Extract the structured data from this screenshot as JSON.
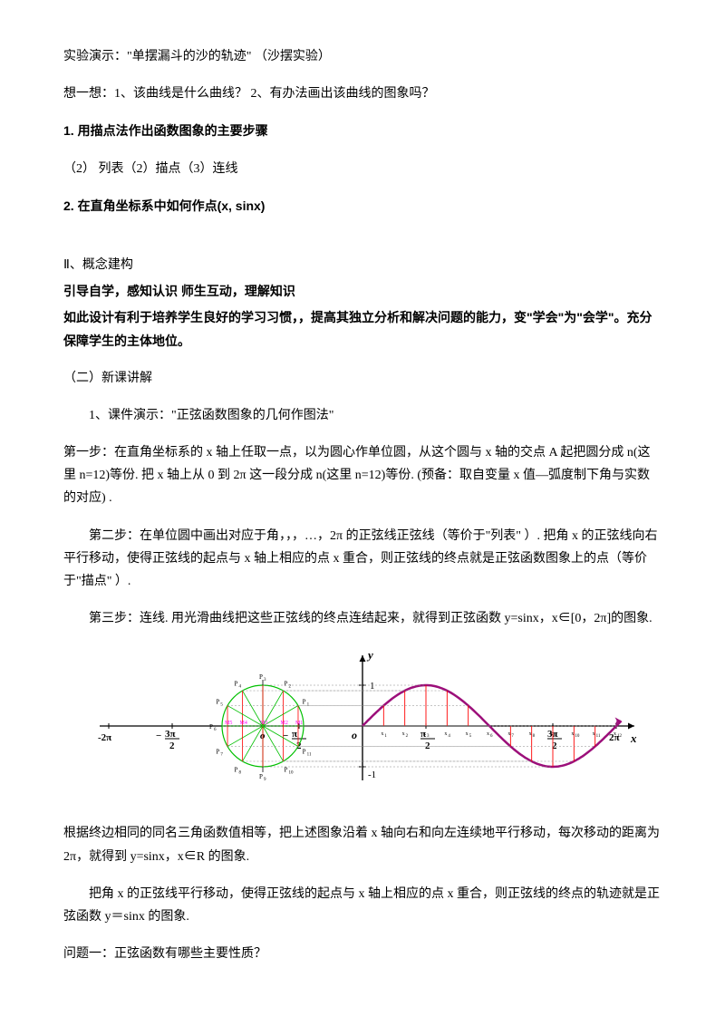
{
  "p1": "实验演示：\"单摆漏斗的沙的轨迹\"   （沙摆实验）",
  "p2": "想一想：1、该曲线是什么曲线？  2、有办法画出该曲线的图象吗？",
  "h1": "1. 用描点法作出函数图象的主要步骤",
  "p3": "（2）  列表（2）描点（3）连线",
  "h2": "2. 在直角坐标系中如何作点(x, sinx)",
  "s2a": "Ⅱ、概念建构",
  "s2b": "引导自学，感知认识    师生互动，理解知识",
  "s2c": "如此设计有利于培养学生良好的学习习惯，，提高其独立分析和解决问题的能力，变\"学会\"为\"会学\"。充分保障学生的主体地位。",
  "p4": "（二）新课讲解",
  "p5": "1、课件演示：\"正弦函数图象的几何作图法\"",
  "p6": "第一步：在直角坐标系的 x 轴上任取一点，以为圆心作单位圆，从这个圆与 x 轴的交点 A 起把圆分成 n(这里 n=12)等份. 把 x 轴上从 0 到 2π 这一段分成 n(这里 n=12)等份.  (预备：取自变量 x 值—弧度制下角与实数的对应) .",
  "p7": "第二步：在单位圆中画出对应于角，，，…，2π 的正弦线正弦线（等价于\"列表\"  ）. 把角 x 的正弦线向右平行移动，使得正弦线的起点与 x 轴上相应的点 x 重合，则正弦线的终点就是正弦函数图象上的点（等价于\"描点\"  ）.",
  "p8": "第三步：连线. 用光滑曲线把这些正弦线的终点连结起来，就得到正弦函数 y=sinx，x∈[0，2π]的图象.",
  "p9": "根据终边相同的同名三角函数值相等，把上述图象沿着 x 轴向右和向左连续地平行移动，每次移动的距离为 2π，就得到 y=sinx，x∈R 的图象.",
  "p10": "把角 x 的正弦线平行移动，使得正弦线的起点与 x 轴上相应的点 x 重合，则正弦线的终点的轨迹就是正弦函数 y＝sinx 的图象.",
  "p11": "问题一：正弦函数有哪些主要性质？",
  "figure": {
    "colors": {
      "axis_black": "#000000",
      "sine_curve": "#9c0f7a",
      "circle": "#00c000",
      "radii": "#00c000",
      "proj_line": "#ff0000",
      "tick_dash": "#888888",
      "label": "#000000",
      "point_label": "#ff00ff"
    },
    "axis_labels_x": [
      "-2π",
      "-3π/2",
      "-π/2",
      "π/2",
      "3π/2",
      "2π"
    ],
    "axis_label_y_top": "y",
    "axis_label_x_right": "x",
    "unit_circle": {
      "divisions": 12
    }
  }
}
